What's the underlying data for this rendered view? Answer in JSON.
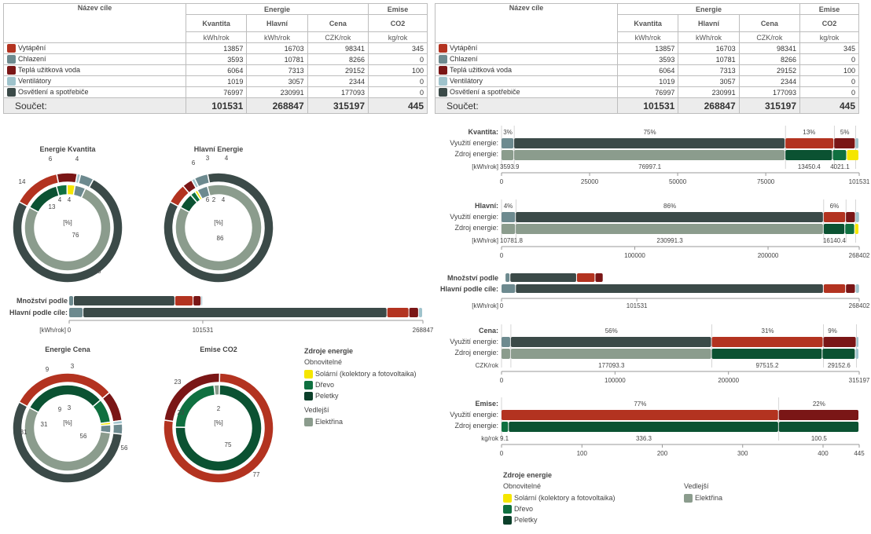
{
  "table": {
    "h_energy": "Energie",
    "h_goal": "Název cíle",
    "h_emise": "Emise",
    "h_co2": "CO2",
    "cols": [
      "Kvantita",
      "Hlavní",
      "Cena"
    ],
    "units": [
      "kWh/rok",
      "kWh/rok",
      "CZK/rok",
      "kg/rok"
    ],
    "rows": [
      {
        "name": "Vytápění",
        "color": "#b33320",
        "v": [
          "13857",
          "16703",
          "98341",
          "345"
        ]
      },
      {
        "name": "Chlazení",
        "color": "#6d8a8f",
        "v": [
          "3593",
          "10781",
          "8266",
          "0"
        ]
      },
      {
        "name": "Teplá užitková voda",
        "color": "#7a1616",
        "v": [
          "6064",
          "7313",
          "29152",
          "100"
        ]
      },
      {
        "name": "Ventilátory",
        "color": "#9fc3cc",
        "v": [
          "1019",
          "3057",
          "2344",
          "0"
        ]
      },
      {
        "name": "Osvětlení a spotřebiče",
        "color": "#3b4a48",
        "v": [
          "76997",
          "230991",
          "177093",
          "0"
        ]
      }
    ],
    "sum_label": "Součet:",
    "sums": [
      "101531",
      "268847",
      "315197",
      "445"
    ]
  },
  "donuts": [
    {
      "title": "Energie Kvantita",
      "pct": "[%]",
      "outer": [
        {
          "v": 14,
          "c": "#b33320"
        },
        {
          "v": 6,
          "c": "#7a1616"
        },
        {
          "v": 1,
          "c": "#9fc3cc"
        },
        {
          "v": 4,
          "c": "#6d8a8f"
        },
        {
          "v": 75,
          "c": "#3b4a48"
        }
      ],
      "inner": [
        {
          "v": 13,
          "c": "#0b5232"
        },
        {
          "v": 4,
          "c": "#0f7040"
        },
        {
          "v": 3,
          "c": "#f5e600"
        },
        {
          "v": 4,
          "c": "#6d8a8f"
        },
        {
          "v": 76,
          "c": "#8b9c8d"
        }
      ],
      "labels": [
        "14",
        "6",
        "4",
        "75",
        "13",
        "4",
        "4",
        "76"
      ]
    },
    {
      "title": "Hlavní Energie",
      "pct": "[%]",
      "outer": [
        {
          "v": 6,
          "c": "#b33320"
        },
        {
          "v": 3,
          "c": "#7a1616"
        },
        {
          "v": 1,
          "c": "#9fc3cc"
        },
        {
          "v": 4,
          "c": "#6d8a8f"
        },
        {
          "v": 86,
          "c": "#3b4a48"
        }
      ],
      "inner": [
        {
          "v": 6,
          "c": "#0b5232"
        },
        {
          "v": 2,
          "c": "#0f7040"
        },
        {
          "v": 1,
          "c": "#f5e600"
        },
        {
          "v": 4,
          "c": "#6d8a8f"
        },
        {
          "v": 87,
          "c": "#8b9c8d"
        }
      ],
      "labels": [
        "6",
        "3",
        "4",
        "86",
        "6",
        "2",
        "4",
        "86"
      ]
    },
    {
      "title": "Energie Cena",
      "pct": "[%]",
      "outer": [
        {
          "v": 31,
          "c": "#b33320"
        },
        {
          "v": 9,
          "c": "#7a1616"
        },
        {
          "v": 1,
          "c": "#9fc3cc"
        },
        {
          "v": 3,
          "c": "#6d8a8f"
        },
        {
          "v": 56,
          "c": "#3b4a48"
        }
      ],
      "inner": [
        {
          "v": 31,
          "c": "#0b5232"
        },
        {
          "v": 9,
          "c": "#0f7040"
        },
        {
          "v": 1,
          "c": "#f5e600"
        },
        {
          "v": 3,
          "c": "#6d8a8f"
        },
        {
          "v": 56,
          "c": "#8b9c8d"
        }
      ],
      "labels": [
        "31",
        "9",
        "3",
        "56",
        "31",
        "9",
        "3",
        "56"
      ]
    },
    {
      "title": "Emise CO2",
      "pct": "[%]",
      "outer": [
        {
          "v": 77,
          "c": "#b33320"
        },
        {
          "v": 23,
          "c": "#7a1616"
        }
      ],
      "inner": [
        {
          "v": 75,
          "c": "#0b5232"
        },
        {
          "v": 23,
          "c": "#0f7040"
        },
        {
          "v": 2,
          "c": "#8b9c8d"
        }
      ],
      "labels": [
        "23",
        "77",
        "23",
        "2",
        "75"
      ]
    }
  ],
  "legend": {
    "title": "Zdroje energie",
    "renew": "Obnovitelné",
    "solar": "Solární (kolektory a fotovoltaika)",
    "wood": "Dřevo",
    "pellets": "Peletky",
    "side": "Vedlejší",
    "elec": "Elektřina",
    "c_solar": "#f5e600",
    "c_wood": "#0f7040",
    "c_pellets": "#0b3f2a",
    "c_elec": "#8b9c8d"
  },
  "left_bars": {
    "l1": "Množství podle",
    "l2": "Hlavní podle cíle:",
    "unit": "[kWh/rok]",
    "ticks": [
      "0",
      "101531",
      "268847"
    ]
  },
  "right_charts": [
    {
      "title": "Kvantita:",
      "use": "Využití energie:",
      "src": "Zdroj energie:",
      "unit": "[kWh/rok]",
      "pcts": [
        "3%",
        "75%",
        "13%",
        "5%"
      ],
      "vals": [
        "3593.9",
        "76997.1",
        "13450.4",
        "4021.1"
      ],
      "ticks": [
        "0",
        "25000",
        "50000",
        "75000",
        "101531"
      ]
    },
    {
      "title": "Hlavní:",
      "use": "Využití energie:",
      "src": "Zdroj energie:",
      "unit": "[kWh/rok]",
      "pcts": [
        "4%",
        "86%",
        "6%"
      ],
      "vals": [
        "10781.8",
        "230991.3",
        "16140.4"
      ],
      "ticks": [
        "0",
        "100000",
        "200000",
        "268402"
      ]
    },
    {
      "title": "Cena:",
      "use": "Využití energie:",
      "src": "Zdroj energie:",
      "unit": "CZK/rok",
      "pcts": [
        "56%",
        "31%",
        "9%"
      ],
      "vals": [
        "177093.3",
        "97515.2",
        "29152.6"
      ],
      "ticks": [
        "0",
        "100000",
        "200000",
        "315197"
      ]
    },
    {
      "title": "Emise:",
      "use": "Využití energie:",
      "src": "Zdroj energie:",
      "unit": "kg/rok",
      "pcts": [
        "77%",
        "22%"
      ],
      "vals": [
        "9.1",
        "336.3",
        "100.5"
      ],
      "ticks": [
        "0",
        "100",
        "200",
        "300",
        "400",
        "445"
      ]
    }
  ],
  "right_mid": {
    "l1": "Množství podle",
    "l2": "Hlavní podle cíle:",
    "unit": "[kWh/rok]",
    "ticks": [
      "0",
      "101531",
      "268402"
    ]
  }
}
